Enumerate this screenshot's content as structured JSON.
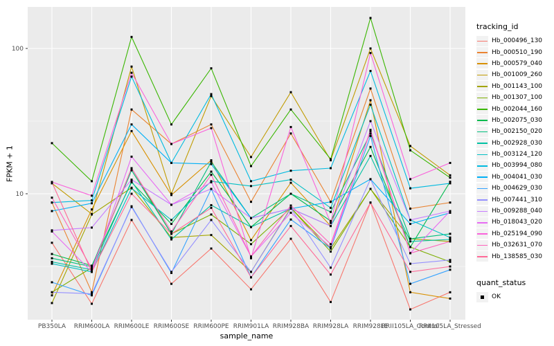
{
  "colors": {
    "panel_bg": "#EBEBEB",
    "grid": "#FFFFFF",
    "tick_text": "#4D4D4D",
    "axis_text": "#000000",
    "point": "#000000"
  },
  "chart_data": {
    "type": "line",
    "title": "",
    "xlabel": "sample_name",
    "ylabel": "FPKM + 1",
    "yscale": "log10",
    "ylim": [
      1.36,
      193
    ],
    "grid": true,
    "legend_position": "right",
    "y_ticks": [
      {
        "label": "100",
        "value": 100
      },
      {
        "label": "10",
        "value": 10
      }
    ],
    "y_minor_gridlines": [
      31.623,
      3.1623
    ],
    "categories": [
      "PB350LA",
      "RRIM600LA",
      "RRIM600LE",
      "RRIM600SE",
      "RRIM600PE",
      "RRIM901LA",
      "RRIM928BA",
      "RRIM928LA",
      "RRIM928LE",
      "RRII105LA_Control",
      "RRII105LA_Stressed"
    ],
    "legend_title": "tracking_id",
    "marker": "square",
    "series": [
      {
        "name": "Hb_000496_130",
        "color": "#F8766D",
        "values": [
          4.6,
          1.75,
          6.6,
          2.4,
          4.2,
          2.2,
          4.9,
          1.8,
          8.7,
          1.6,
          2.1
        ]
      },
      {
        "name": "Hb_000510_190",
        "color": "#EA8331",
        "values": [
          8.7,
          2.1,
          38,
          22,
          30,
          8.8,
          26,
          8.8,
          53,
          7.9,
          8.7
        ]
      },
      {
        "name": "Hb_000579_040",
        "color": "#D89000",
        "values": [
          2.0,
          7.8,
          27,
          9.8,
          17,
          4.8,
          11.9,
          6.0,
          44,
          2.1,
          1.9
        ]
      },
      {
        "name": "Hb_001009_260",
        "color": "#C09B00",
        "values": [
          11.8,
          7.25,
          75,
          10,
          47,
          17.9,
          50,
          17,
          100,
          21.3,
          13.4
        ]
      },
      {
        "name": "Hb_001143_100",
        "color": "#A3A500",
        "values": [
          1.77,
          7.2,
          11,
          5.0,
          5.2,
          2.9,
          8.0,
          4.2,
          10.8,
          4.9,
          4.7
        ]
      },
      {
        "name": "Hb_001307_100",
        "color": "#7CAE00",
        "values": [
          2.1,
          3.1,
          15,
          5.3,
          7.2,
          4.5,
          8.0,
          4.0,
          10.8,
          4.3,
          3.4
        ]
      },
      {
        "name": "Hb_002044_160",
        "color": "#39B600",
        "values": [
          22.3,
          12.2,
          120,
          30,
          73,
          15.5,
          38,
          17.3,
          162,
          19.9,
          12.9
        ]
      },
      {
        "name": "Hb_002075_030",
        "color": "#00BB4E",
        "values": [
          3.85,
          3.2,
          12,
          6.2,
          14.2,
          5.9,
          10,
          6.5,
          21,
          4.3,
          12.1
        ]
      },
      {
        "name": "Hb_002150_020",
        "color": "#00BF7D",
        "values": [
          3.6,
          3.15,
          14.5,
          5.3,
          16.6,
          6.8,
          10,
          7.5,
          26,
          4.9,
          5.3
        ]
      },
      {
        "name": "Hb_002928_030",
        "color": "#00C1A3",
        "values": [
          3.4,
          3.0,
          12.2,
          4.85,
          8.35,
          5.9,
          7.9,
          6.0,
          18.2,
          4.7,
          4.85
        ]
      },
      {
        "name": "Hb_003124_120",
        "color": "#00BFC4",
        "values": [
          3.3,
          2.9,
          10.9,
          6.6,
          12.2,
          11.3,
          12.5,
          8.0,
          41,
          6.6,
          5.0
        ]
      },
      {
        "name": "Hb_003994_080",
        "color": "#00BAE0",
        "values": [
          8.7,
          9.0,
          64,
          16.3,
          48.5,
          12.2,
          14.4,
          15.0,
          70,
          10.9,
          11.8
        ]
      },
      {
        "name": "Hb_004041_030",
        "color": "#00B0F6",
        "values": [
          7.6,
          8.6,
          30,
          16.3,
          16,
          6.8,
          7.9,
          8.8,
          12.6,
          6.2,
          7.4
        ]
      },
      {
        "name": "Hb_004629_030",
        "color": "#35A2FF",
        "values": [
          2.46,
          2.0,
          8.2,
          2.85,
          10.8,
          2.66,
          6.65,
          4.2,
          25,
          2.4,
          3.0
        ]
      },
      {
        "name": "Hb_007441_310",
        "color": "#9590FF",
        "values": [
          2.1,
          2.05,
          8.1,
          2.9,
          6.6,
          2.9,
          7.9,
          3.1,
          12.6,
          3.3,
          3.5
        ]
      },
      {
        "name": "Hb_009288_040",
        "color": "#C77CFF",
        "values": [
          5.6,
          5.85,
          12.5,
          8.4,
          10.8,
          6.8,
          7.9,
          6.0,
          31.6,
          6.6,
          7.6
        ]
      },
      {
        "name": "Hb_018043_020",
        "color": "#E76BF3",
        "values": [
          5.5,
          2.9,
          18,
          8.4,
          12,
          3.7,
          7.4,
          4.3,
          27.5,
          3.9,
          7.6
        ]
      },
      {
        "name": "Hb_025194_090",
        "color": "#FA62DB",
        "values": [
          12.05,
          9.7,
          68,
          22,
          28.3,
          3.6,
          28.8,
          6.3,
          93,
          12.6,
          16.3
        ]
      },
      {
        "name": "Hb_032631_070",
        "color": "#FF62BC",
        "values": [
          9.4,
          3.05,
          15,
          5.5,
          13.5,
          3.7,
          8.3,
          4.5,
          27,
          3.9,
          4.7
        ]
      },
      {
        "name": "Hb_138585_030",
        "color": "#FF6A98",
        "values": [
          12.0,
          2.9,
          10,
          5.3,
          8.0,
          2.66,
          6.0,
          2.78,
          8.7,
          2.9,
          3.16
        ]
      }
    ],
    "quant_legend": {
      "title": "quant_status",
      "items": [
        {
          "label": "OK",
          "marker": "black-square"
        }
      ]
    }
  }
}
